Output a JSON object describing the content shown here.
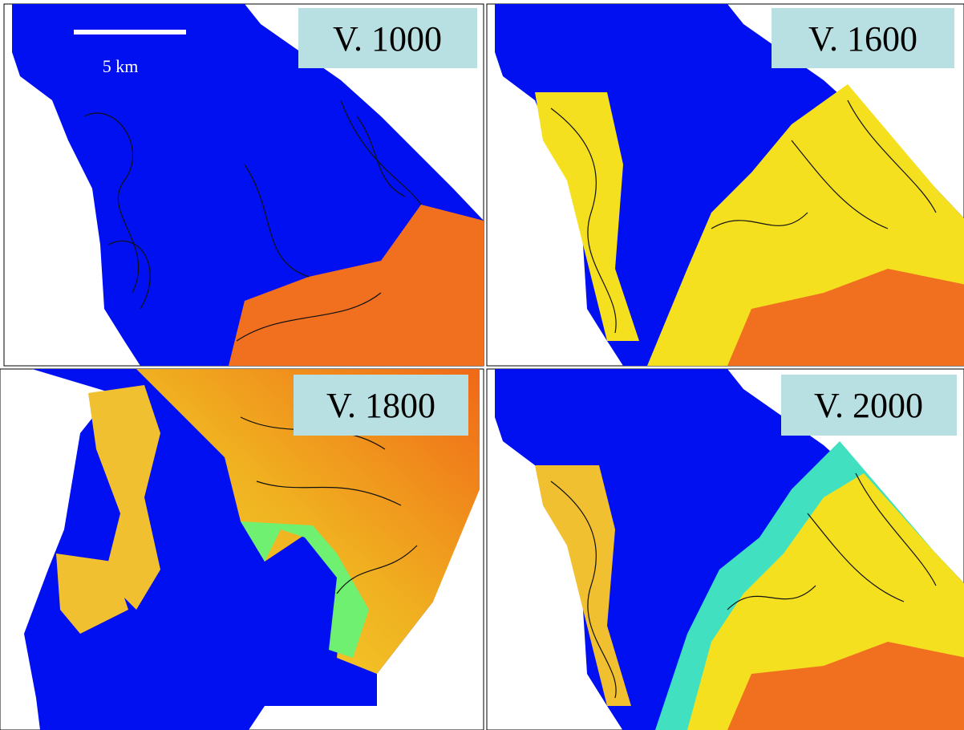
{
  "panels": [
    {
      "label": "V. 1000"
    },
    {
      "label": "V. 1600"
    },
    {
      "label": "V. 1800"
    },
    {
      "label": "V. 2000"
    }
  ],
  "scale_bar": {
    "label": "5 km"
  }
}
